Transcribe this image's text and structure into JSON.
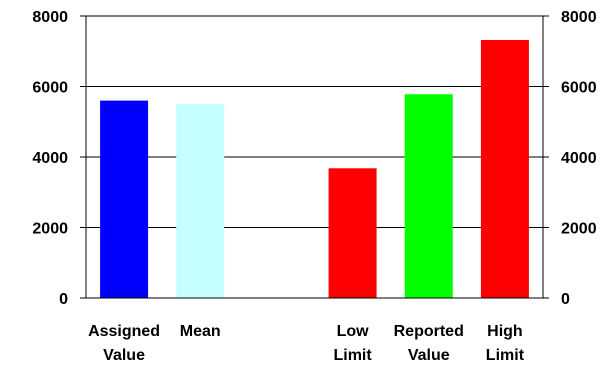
{
  "chart_data": {
    "type": "bar",
    "categories": [
      [
        "Assigned",
        "Value"
      ],
      [
        "Mean"
      ],
      [
        ""
      ],
      [
        "Low",
        "Limit"
      ],
      [
        "Reported",
        "Value"
      ],
      [
        "High",
        "Limit"
      ]
    ],
    "values": [
      5600,
      5500,
      0,
      3680,
      5780,
      7320
    ],
    "colors": [
      "#0000ff",
      "#c6ffff",
      "#ffffff",
      "#ff0000",
      "#00ff00",
      "#ff0000"
    ],
    "ylim": [
      0,
      8000
    ],
    "yticks": [
      0,
      2000,
      4000,
      6000,
      8000
    ],
    "ytick_labels": [
      "0",
      "2000",
      "4000",
      "6000",
      "8000"
    ],
    "grid": true,
    "secondary_axis": "right",
    "title": "",
    "xlabel": "",
    "ylabel": ""
  }
}
